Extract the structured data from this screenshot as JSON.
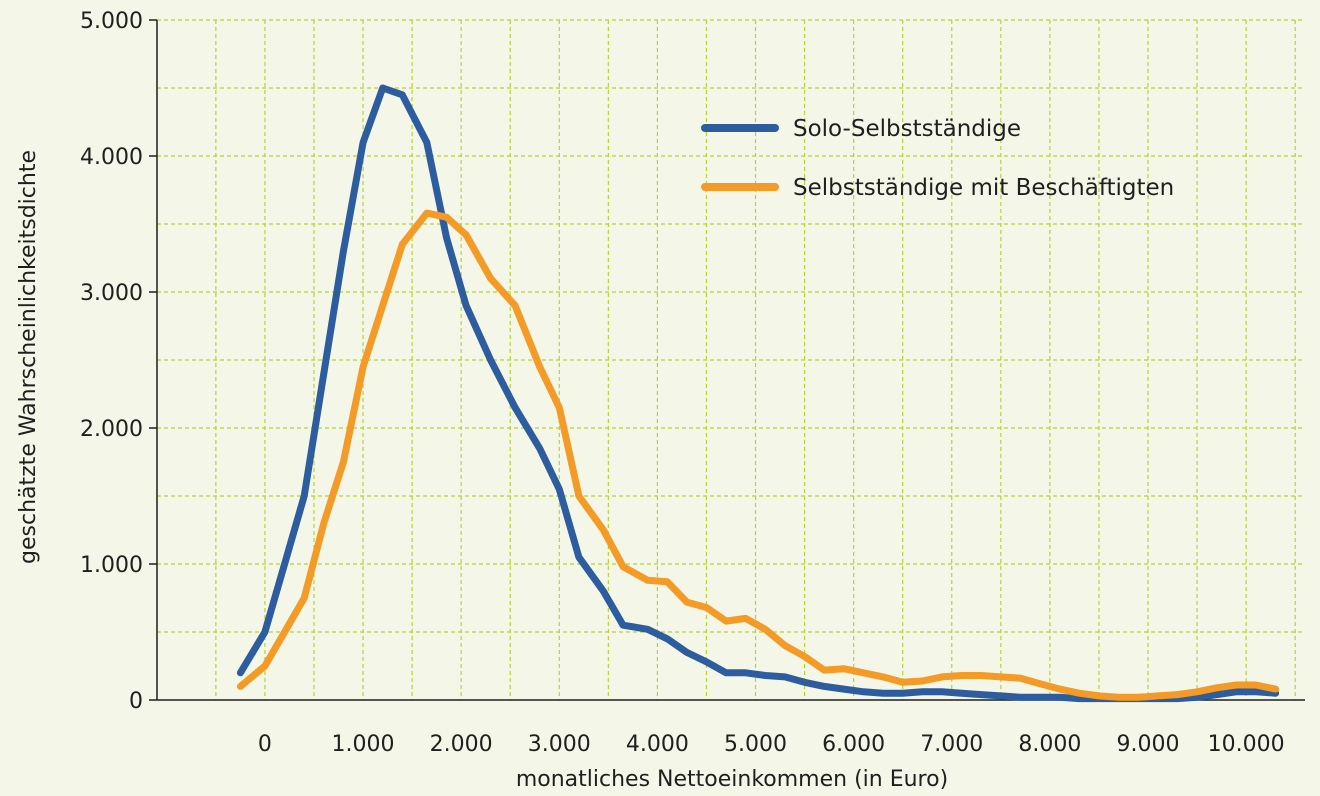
{
  "chart_data": {
    "type": "line",
    "title": "",
    "xlabel": "monatliches Nettoeinkommen (in Euro)",
    "ylabel": "geschätzte Wahrscheinlichkeitsdichte",
    "xlim": [
      -1100,
      10600
    ],
    "ylim": [
      0,
      5000
    ],
    "x_ticks": [
      0,
      1000,
      2000,
      3000,
      4000,
      5000,
      6000,
      7000,
      8000,
      9000,
      10000
    ],
    "x_tick_labels": [
      "0",
      "1.000",
      "2.000",
      "3.000",
      "4.000",
      "5.000",
      "6.000",
      "7.000",
      "8.000",
      "9.000",
      "10.000"
    ],
    "y_ticks": [
      0,
      1000,
      2000,
      3000,
      4000,
      5000
    ],
    "y_tick_labels": [
      "0",
      "1.000",
      "2.000",
      "3.000",
      "4.000",
      "5.000"
    ],
    "grid": true,
    "legend_position": "upper-right",
    "colors": {
      "background": "#f4f7e8",
      "grid": "#b5d335",
      "axis": "#1f1f1f"
    },
    "series": [
      {
        "name": "Solo-Selbstständige",
        "color": "#2d5d9f",
        "points": [
          [
            -250,
            200
          ],
          [
            0,
            500
          ],
          [
            200,
            1000
          ],
          [
            400,
            1500
          ],
          [
            600,
            2400
          ],
          [
            800,
            3300
          ],
          [
            1000,
            4100
          ],
          [
            1200,
            4500
          ],
          [
            1400,
            4450
          ],
          [
            1650,
            4100
          ],
          [
            1850,
            3400
          ],
          [
            2050,
            2900
          ],
          [
            2300,
            2500
          ],
          [
            2550,
            2150
          ],
          [
            2800,
            1850
          ],
          [
            3000,
            1550
          ],
          [
            3200,
            1050
          ],
          [
            3450,
            800
          ],
          [
            3650,
            550
          ],
          [
            3900,
            520
          ],
          [
            4100,
            450
          ],
          [
            4300,
            350
          ],
          [
            4500,
            280
          ],
          [
            4700,
            200
          ],
          [
            4900,
            200
          ],
          [
            5100,
            180
          ],
          [
            5300,
            170
          ],
          [
            5500,
            130
          ],
          [
            5700,
            100
          ],
          [
            5900,
            80
          ],
          [
            6100,
            60
          ],
          [
            6300,
            50
          ],
          [
            6500,
            50
          ],
          [
            6700,
            60
          ],
          [
            6900,
            60
          ],
          [
            7100,
            50
          ],
          [
            7300,
            40
          ],
          [
            7500,
            30
          ],
          [
            7700,
            20
          ],
          [
            7900,
            20
          ],
          [
            8100,
            20
          ],
          [
            8300,
            10
          ],
          [
            8500,
            10
          ],
          [
            8700,
            10
          ],
          [
            8900,
            10
          ],
          [
            9100,
            10
          ],
          [
            9300,
            10
          ],
          [
            9500,
            20
          ],
          [
            9700,
            40
          ],
          [
            9900,
            60
          ],
          [
            10100,
            60
          ],
          [
            10300,
            50
          ]
        ]
      },
      {
        "name": "Selbstständige mit Beschäftigten",
        "color": "#f39a27",
        "points": [
          [
            -250,
            100
          ],
          [
            0,
            250
          ],
          [
            200,
            500
          ],
          [
            400,
            750
          ],
          [
            600,
            1300
          ],
          [
            800,
            1750
          ],
          [
            1000,
            2450
          ],
          [
            1200,
            2900
          ],
          [
            1400,
            3350
          ],
          [
            1650,
            3580
          ],
          [
            1850,
            3550
          ],
          [
            2050,
            3420
          ],
          [
            2300,
            3100
          ],
          [
            2550,
            2900
          ],
          [
            2800,
            2450
          ],
          [
            3000,
            2150
          ],
          [
            3200,
            1500
          ],
          [
            3450,
            1250
          ],
          [
            3650,
            980
          ],
          [
            3900,
            880
          ],
          [
            4100,
            870
          ],
          [
            4300,
            720
          ],
          [
            4500,
            680
          ],
          [
            4700,
            580
          ],
          [
            4900,
            600
          ],
          [
            5100,
            520
          ],
          [
            5300,
            400
          ],
          [
            5500,
            320
          ],
          [
            5700,
            220
          ],
          [
            5900,
            230
          ],
          [
            6100,
            200
          ],
          [
            6300,
            170
          ],
          [
            6500,
            130
          ],
          [
            6700,
            140
          ],
          [
            6900,
            170
          ],
          [
            7100,
            180
          ],
          [
            7300,
            180
          ],
          [
            7500,
            170
          ],
          [
            7700,
            160
          ],
          [
            7900,
            120
          ],
          [
            8100,
            80
          ],
          [
            8300,
            50
          ],
          [
            8500,
            30
          ],
          [
            8700,
            20
          ],
          [
            8900,
            20
          ],
          [
            9100,
            30
          ],
          [
            9300,
            40
          ],
          [
            9500,
            60
          ],
          [
            9700,
            90
          ],
          [
            9900,
            110
          ],
          [
            10100,
            110
          ],
          [
            10300,
            80
          ]
        ]
      }
    ]
  }
}
